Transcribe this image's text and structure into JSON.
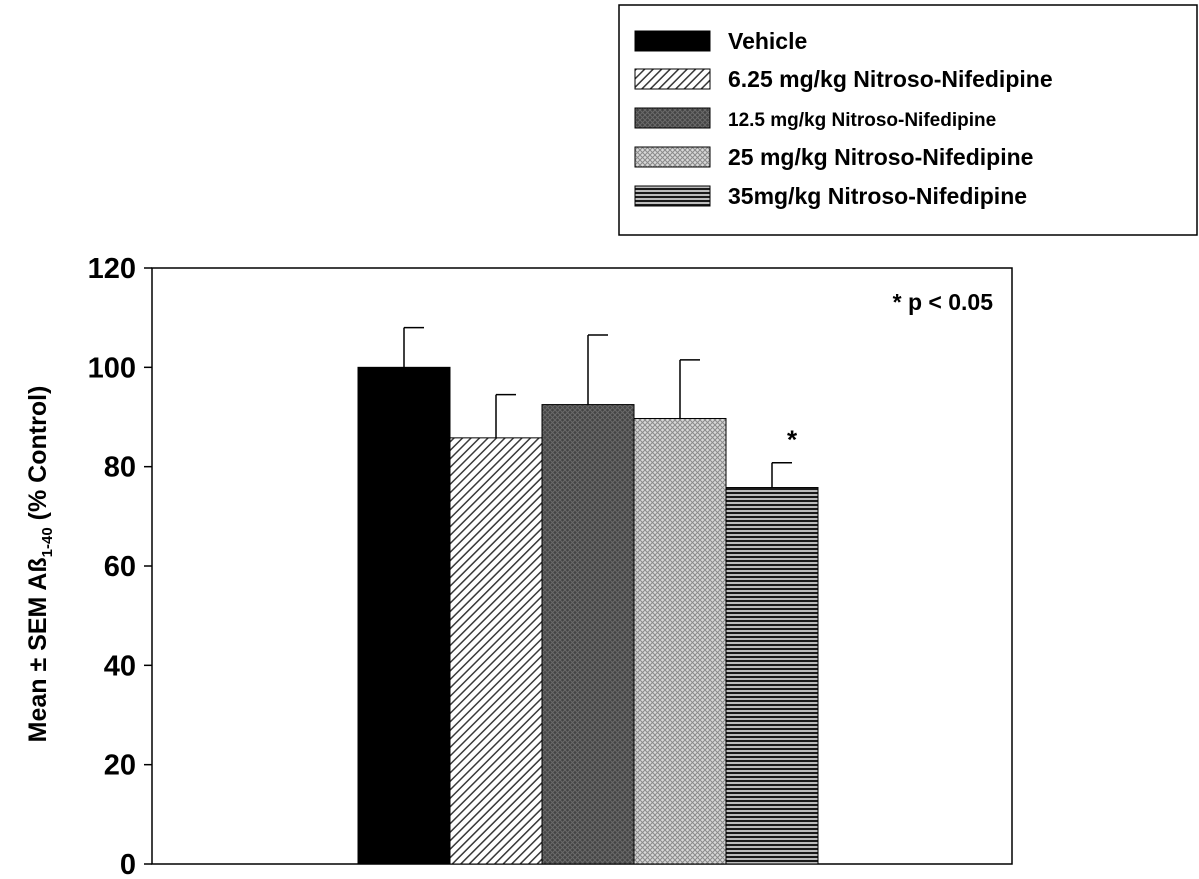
{
  "chart_data": {
    "type": "bar",
    "title": "",
    "xlabel": "",
    "ylabel": {
      "main": "Mean ± SEM Aß",
      "subscript": "1-40",
      "suffix": " (% Control)"
    },
    "ylim": [
      0,
      120
    ],
    "yticks": [
      0,
      20,
      40,
      60,
      80,
      100,
      120
    ],
    "grid": false,
    "legend_position": "top-right",
    "series": [
      {
        "name": "Vehicle",
        "value": 100,
        "error": 8,
        "fill": "solid-black",
        "color": "#000000",
        "significant": false
      },
      {
        "name": "6.25 mg/kg Nitroso-Nifedipine",
        "value": 85.8,
        "error": 8.7,
        "fill": "diagonal-hatch",
        "color": "#4a4a4a",
        "significant": false
      },
      {
        "name": "12.5 mg/kg Nitroso-Nifedipine",
        "value": 92.5,
        "error": 14,
        "fill": "dark-crosshatch",
        "color": "#3a3a3a",
        "significant": false
      },
      {
        "name": "25 mg/kg Nitroso-Nifedipine",
        "value": 89.7,
        "error": 11.8,
        "fill": "light-crosshatch",
        "color": "#9a9a9a",
        "significant": false
      },
      {
        "name": "35mg/kg Nitroso-Nifedipine",
        "value": 75.8,
        "error": 5,
        "fill": "horizontal-lines",
        "color": "#2a2a2a",
        "significant": true
      }
    ],
    "annotations": {
      "significance_note": "* p < 0.05",
      "significance_marker": "*"
    }
  }
}
